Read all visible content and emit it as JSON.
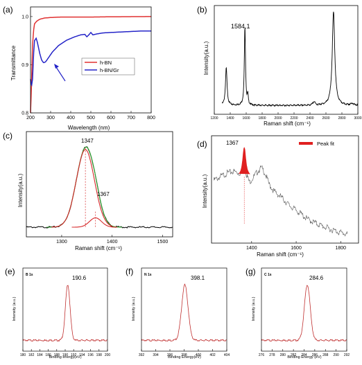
{
  "chart_data": [
    {
      "panel": "(a)",
      "type": "line",
      "xlabel": "Wavelength (nm)",
      "ylabel": "Transmittance",
      "xlim": [
        200,
        800
      ],
      "ylim": [
        0.8,
        1.02
      ],
      "xticks": [
        "200",
        "300",
        "400",
        "500",
        "600",
        "700",
        "800"
      ],
      "yticks": [
        "0.8",
        "0.9",
        "1.0"
      ],
      "legend": {
        "placement": "center-right",
        "entries": [
          "h-BN",
          "h-BN/Gr"
        ]
      },
      "series": [
        {
          "name": "h-BN",
          "color": "#e03030",
          "x": [
            200,
            205,
            210,
            215,
            220,
            230,
            240,
            250,
            270,
            300,
            350,
            400,
            500,
            600,
            700,
            800
          ],
          "y": [
            0.8,
            0.86,
            0.94,
            0.97,
            0.985,
            0.99,
            0.993,
            0.995,
            0.997,
            0.998,
            0.999,
            0.999,
            0.999,
            0.9995,
            0.9998,
            1.0
          ]
        },
        {
          "name": "h-BN/Gr",
          "color": "#2424c8",
          "x": [
            200,
            203,
            206,
            210,
            215,
            220,
            228,
            235,
            245,
            255,
            265,
            275,
            290,
            310,
            340,
            380,
            420,
            450,
            470,
            480,
            490,
            500,
            510,
            530,
            560,
            600,
            650,
            700,
            750,
            800
          ],
          "y": [
            0.87,
            0.86,
            0.858,
            0.87,
            0.92,
            0.95,
            0.955,
            0.945,
            0.925,
            0.91,
            0.904,
            0.906,
            0.915,
            0.927,
            0.94,
            0.951,
            0.958,
            0.962,
            0.963,
            0.958,
            0.962,
            0.967,
            0.962,
            0.964,
            0.966,
            0.967,
            0.968,
            0.969,
            0.97,
            0.97
          ]
        }
      ]
    },
    {
      "panel": "(b)",
      "type": "line",
      "xlabel": "Raman shift (cm⁻¹)",
      "ylabel": "Intensity(a.u.)",
      "xlim": [
        1200,
        3000
      ],
      "xticks": [
        "1200",
        "1400",
        "1600",
        "1800",
        "2000",
        "2200",
        "2400",
        "2600",
        "2800",
        "3000"
      ],
      "annotations": [
        "1584.1"
      ],
      "series": [
        {
          "color": "#000000",
          "peaks": [
            {
              "center": 1350,
              "height": 0.4,
              "width": 12
            },
            {
              "center": 1584,
              "height": 0.83,
              "width": 9
            },
            {
              "center": 1620,
              "height": 0.1,
              "width": 7
            },
            {
              "center": 2450,
              "height": 0.04,
              "width": 15
            },
            {
              "center": 2695,
              "height": 1.0,
              "width": 19
            },
            {
              "center": 2930,
              "height": 0.02,
              "width": 20
            }
          ],
          "baseline": 0.02
        }
      ]
    },
    {
      "panel": "(c)",
      "type": "line",
      "xlabel": "Raman shift (cm⁻¹)",
      "ylabel": "Intensity(a.u.)",
      "xlim": [
        1230,
        1520
      ],
      "xticks": [
        "1300",
        "1400",
        "1500"
      ],
      "annotations": [
        "1347",
        "1367"
      ],
      "series": [
        {
          "name": "raw",
          "color": "#000000",
          "peaks": [
            {
              "center": 1347,
              "height": 1.0,
              "width": 18
            },
            {
              "center": 1367,
              "height": 0.12,
              "width": 12
            }
          ],
          "baseline": 0.0
        },
        {
          "name": "fit total",
          "color": "#2ca02c",
          "peaks": [
            {
              "center": 1347,
              "height": 1.0,
              "width": 18
            },
            {
              "center": 1367,
              "height": 0.12,
              "width": 12
            }
          ],
          "range": [
            1270,
            1420
          ]
        },
        {
          "name": "fit 1347",
          "color": "#d62728",
          "peaks": [
            {
              "center": 1347,
              "height": 1.0,
              "width": 18
            }
          ],
          "range": [
            1280,
            1400
          ]
        },
        {
          "name": "fit 1367",
          "color": "#d62728",
          "peaks": [
            {
              "center": 1367,
              "height": 0.12,
              "width": 12
            }
          ],
          "range": [
            1320,
            1410
          ]
        }
      ]
    },
    {
      "panel": "(d)",
      "type": "line",
      "xlabel": "Raman shift (cm⁻¹)",
      "ylabel": "Intensity(a.u.)",
      "xlim": [
        1220,
        1880
      ],
      "xticks": [
        "1400",
        "1600",
        "1800"
      ],
      "annotations": [
        "1367"
      ],
      "legend": {
        "placement": "top-right",
        "entries": [
          "Peak fit"
        ]
      },
      "series": [
        {
          "name": "Peak fit",
          "color": "#e02020",
          "peaks": [
            {
              "center": 1367,
              "height": 0.32,
              "width": 8
            }
          ]
        },
        {
          "name": "spectrum",
          "color": "#555555",
          "x": [
            1230,
            1260,
            1290,
            1320,
            1345,
            1360,
            1367,
            1375,
            1390,
            1410,
            1430,
            1445,
            1460,
            1480,
            1500,
            1530,
            1570,
            1610,
            1650,
            1700,
            1750,
            1800,
            1830
          ],
          "y": [
            0.62,
            0.66,
            0.7,
            0.72,
            0.7,
            0.72,
            0.98,
            0.7,
            0.6,
            0.66,
            0.73,
            0.76,
            0.7,
            0.57,
            0.5,
            0.44,
            0.34,
            0.27,
            0.19,
            0.13,
            0.08,
            0.04,
            0.02
          ]
        }
      ]
    },
    {
      "panel": "(e)",
      "type": "line",
      "element_label": "B 1s",
      "xlabel": "Binding energy(eV)",
      "ylabel": "Intensity (a.u.)",
      "xlim": [
        180,
        200
      ],
      "xticks": [
        "180",
        "182",
        "184",
        "186",
        "188",
        "190",
        "192",
        "194",
        "196",
        "198",
        "200"
      ],
      "annotations": [
        "190.6"
      ],
      "series": [
        {
          "color": "#c03030",
          "peaks": [
            {
              "center": 190.6,
              "height": 1.0,
              "width": 0.55
            }
          ],
          "baseline": 0.02
        }
      ]
    },
    {
      "panel": "(f)",
      "type": "line",
      "element_label": "N 1s",
      "xlabel": "Binding Energy(eV)",
      "ylabel": "Intensity (a.u.)",
      "xlim": [
        392,
        404
      ],
      "xticks": [
        "392",
        "394",
        "396",
        "398",
        "400",
        "402",
        "404"
      ],
      "annotations": [
        "398.1"
      ],
      "series": [
        {
          "color": "#c03030",
          "peaks": [
            {
              "center": 398.1,
              "height": 1.0,
              "width": 0.45
            }
          ],
          "baseline": 0.02
        }
      ]
    },
    {
      "panel": "(g)",
      "type": "line",
      "element_label": "C 1s",
      "xlabel": "Binding Energy (eV)",
      "ylabel": "Intensity (a.u.)",
      "xlim": [
        276,
        292
      ],
      "xticks": [
        "276",
        "278",
        "280",
        "282",
        "284",
        "286",
        "288",
        "290",
        "292"
      ],
      "annotations": [
        "284.6"
      ],
      "series": [
        {
          "color": "#c03030",
          "peaks": [
            {
              "center": 284.6,
              "height": 1.0,
              "width": 0.55
            }
          ],
          "baseline": 0.02
        }
      ]
    }
  ]
}
